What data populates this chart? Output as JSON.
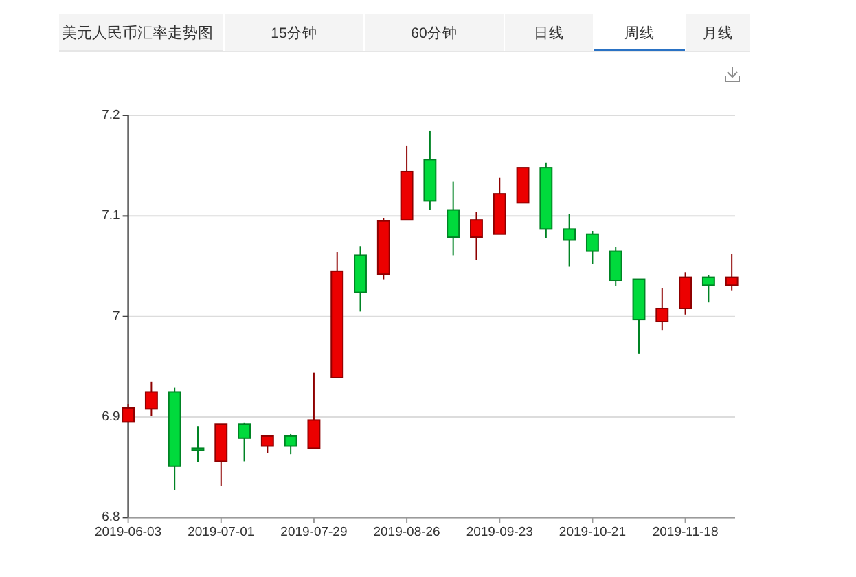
{
  "chart_data": {
    "type": "candlestick",
    "title": "美元人民币汇率走势图",
    "annotations": [
      "15分钟",
      "60分钟",
      "日线",
      "周线",
      "月线"
    ],
    "x": [
      "2019-06-03",
      "2019-06-10",
      "2019-06-17",
      "2019-06-24",
      "2019-07-01",
      "2019-07-08",
      "2019-07-15",
      "2019-07-22",
      "2019-07-29",
      "2019-08-05",
      "2019-08-12",
      "2019-08-19",
      "2019-08-26",
      "2019-09-02",
      "2019-09-09",
      "2019-09-16",
      "2019-09-23",
      "2019-09-30",
      "2019-10-07",
      "2019-10-14",
      "2019-10-21",
      "2019-10-28",
      "2019-11-04",
      "2019-11-11",
      "2019-11-18",
      "2019-11-25",
      "2019-12-02"
    ],
    "ohlc": [
      [
        6.895,
        6.913,
        6.895,
        6.909
      ],
      [
        6.908,
        6.935,
        6.901,
        6.925
      ],
      [
        6.925,
        6.929,
        6.827,
        6.851
      ],
      [
        6.869,
        6.891,
        6.855,
        6.867
      ],
      [
        6.856,
        6.893,
        6.831,
        6.893
      ],
      [
        6.893,
        6.894,
        6.856,
        6.879
      ],
      [
        6.871,
        6.882,
        6.864,
        6.881
      ],
      [
        6.881,
        6.883,
        6.863,
        6.871
      ],
      [
        6.869,
        6.944,
        6.869,
        6.897
      ],
      [
        6.939,
        7.064,
        6.939,
        7.045
      ],
      [
        7.061,
        7.07,
        7.005,
        7.024
      ],
      [
        7.042,
        7.098,
        7.037,
        7.095
      ],
      [
        7.096,
        7.17,
        7.096,
        7.144
      ],
      [
        7.156,
        7.185,
        7.106,
        7.115
      ],
      [
        7.106,
        7.134,
        7.061,
        7.079
      ],
      [
        7.079,
        7.104,
        7.056,
        7.096
      ],
      [
        7.082,
        7.138,
        7.082,
        7.122
      ],
      [
        7.113,
        7.148,
        7.113,
        7.148
      ],
      [
        7.148,
        7.153,
        7.078,
        7.087
      ],
      [
        7.087,
        7.102,
        7.05,
        7.076
      ],
      [
        7.082,
        7.085,
        7.052,
        7.065
      ],
      [
        7.065,
        7.069,
        7.03,
        7.036
      ],
      [
        7.037,
        7.037,
        6.963,
        6.997
      ],
      [
        6.995,
        7.028,
        6.986,
        7.008
      ],
      [
        7.008,
        7.044,
        7.002,
        7.039
      ],
      [
        7.039,
        7.041,
        7.014,
        7.031
      ],
      [
        7.031,
        7.062,
        7.026,
        7.039
      ]
    ],
    "colors": [
      "#ec0000",
      "#ec0000",
      "#00da3c",
      "#00da3c",
      "#ec0000",
      "#00da3c",
      "#ec0000",
      "#00da3c",
      "#ec0000",
      "#ec0000",
      "#00da3c",
      "#ec0000",
      "#ec0000",
      "#00da3c",
      "#00da3c",
      "#ec0000",
      "#ec0000",
      "#ec0000",
      "#00da3c",
      "#00da3c",
      "#00da3c",
      "#00da3c",
      "#00da3c",
      "#ec0000",
      "#ec0000",
      "#00da3c",
      "#ec0000"
    ],
    "xlim": [
      "2019-06-03",
      "2019-12-03"
    ],
    "xticks": [
      "2019-06-03",
      "2019-07-01",
      "2019-07-29",
      "2019-08-26",
      "2019-09-23",
      "2019-10-21",
      "2019-11-18"
    ],
    "ylim": [
      6.8,
      7.2
    ],
    "yticks": [
      6.8,
      6.9,
      7,
      7.1,
      7.2
    ],
    "grid": "y"
  }
}
